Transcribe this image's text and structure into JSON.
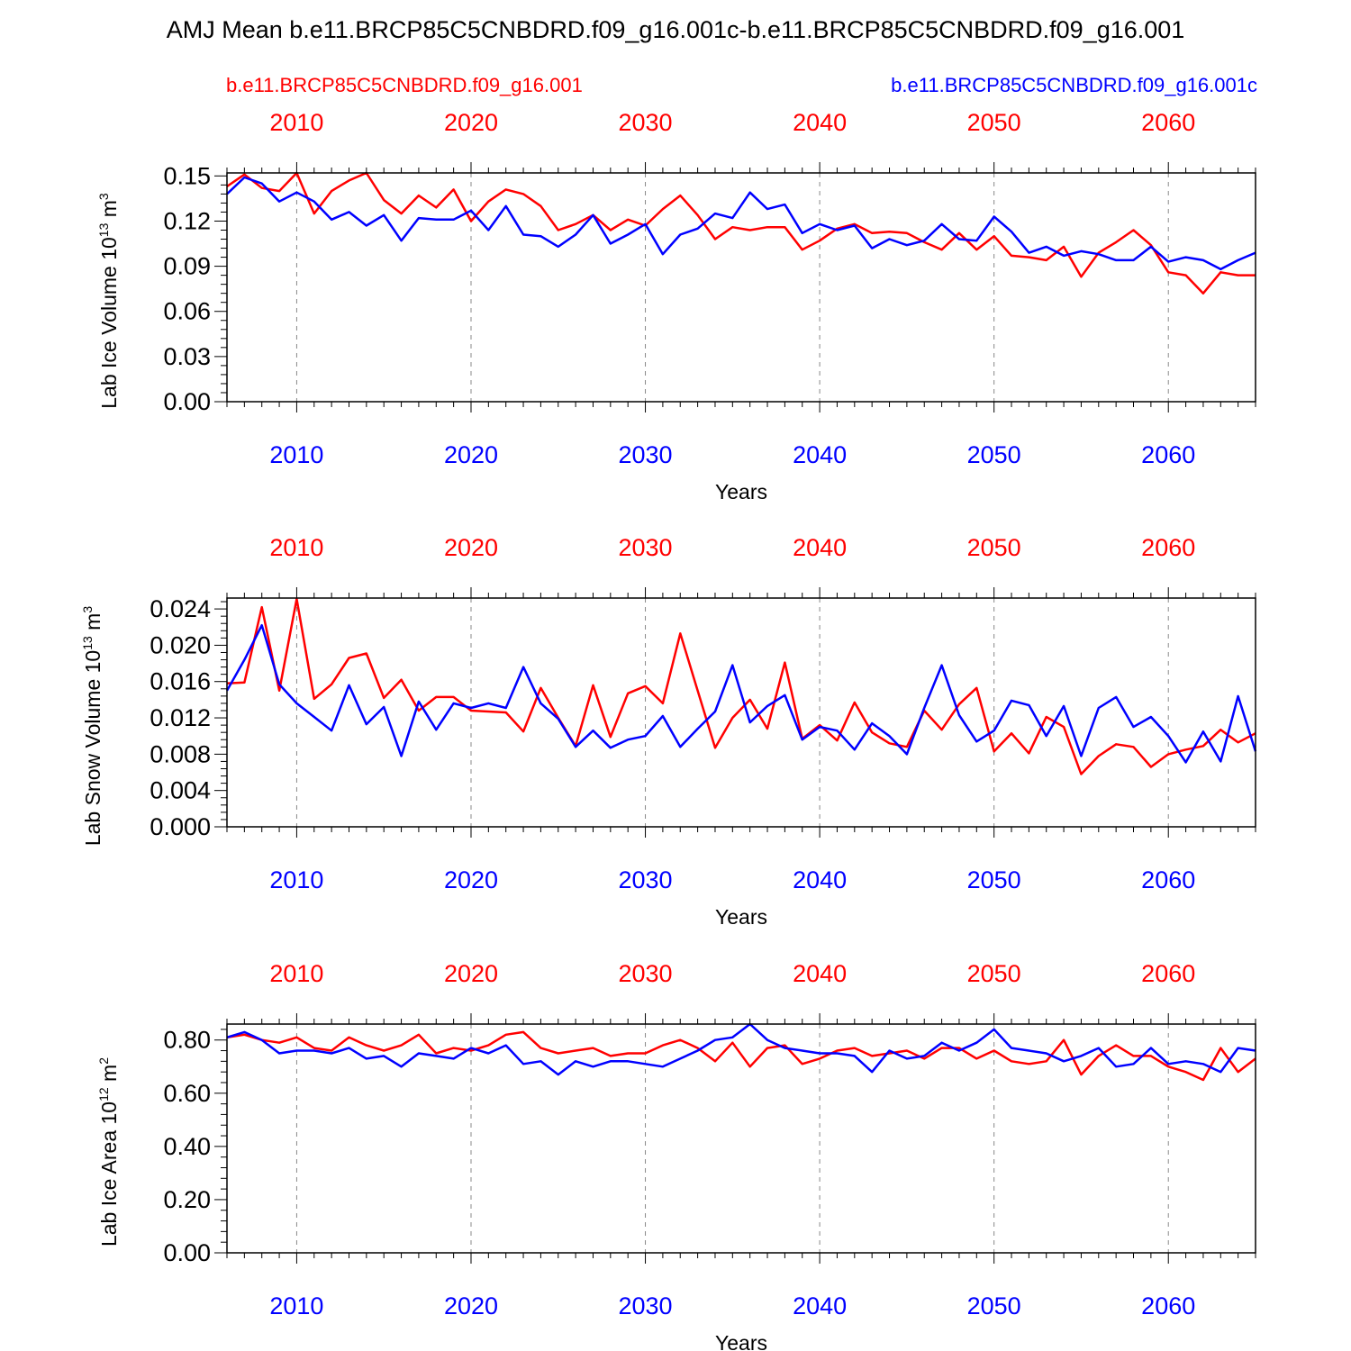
{
  "title": "AMJ Mean b.e11.BRCP85C5CNBDRD.f09_g16.001c-b.e11.BRCP85C5CNBDRD.f09_g16.001",
  "legend": {
    "red": "b.e11.BRCP85C5CNBDRD.f09_g16.001",
    "blue": "b.e11.BRCP85C5CNBDRD.f09_g16.001c"
  },
  "colors": {
    "red": "#ff0000",
    "blue": "#0000ff",
    "axis": "#000000",
    "grid": "#888888"
  },
  "chart_data": [
    {
      "type": "line",
      "ylabel": "Lab Ice Volume",
      "yunit_base": "10",
      "yunit_exp": "13",
      "yunit_tail": "m",
      "yunit_tail_exp": "3",
      "xlabel": "Years",
      "xlim": [
        2006,
        2065
      ],
      "ylim": [
        0,
        0.152
      ],
      "yticks": [
        "0.00",
        "0.03",
        "0.06",
        "0.09",
        "0.12",
        "0.15"
      ],
      "xticks": [
        "2010",
        "2020",
        "2030",
        "2040",
        "2050",
        "2060"
      ],
      "grid": "vertical dashed at major x ticks",
      "x": [
        2006,
        2007,
        2008,
        2009,
        2010,
        2011,
        2012,
        2013,
        2014,
        2015,
        2016,
        2017,
        2018,
        2019,
        2020,
        2021,
        2022,
        2023,
        2024,
        2025,
        2026,
        2027,
        2028,
        2029,
        2030,
        2031,
        2032,
        2033,
        2034,
        2035,
        2036,
        2037,
        2038,
        2039,
        2040,
        2041,
        2042,
        2043,
        2044,
        2045,
        2046,
        2047,
        2048,
        2049,
        2050,
        2051,
        2052,
        2053,
        2054,
        2055,
        2056,
        2057,
        2058,
        2059,
        2060,
        2061,
        2062,
        2063,
        2064,
        2065
      ],
      "series": [
        {
          "color": "red",
          "values": [
            0.143,
            0.151,
            0.142,
            0.14,
            0.152,
            0.125,
            0.14,
            0.147,
            0.152,
            0.134,
            0.125,
            0.137,
            0.129,
            0.141,
            0.12,
            0.133,
            0.141,
            0.138,
            0.13,
            0.114,
            0.118,
            0.124,
            0.114,
            0.121,
            0.117,
            0.128,
            0.137,
            0.124,
            0.108,
            0.116,
            0.114,
            0.116,
            0.116,
            0.101,
            0.107,
            0.115,
            0.118,
            0.112,
            0.113,
            0.112,
            0.106,
            0.101,
            0.112,
            0.101,
            0.11,
            0.097,
            0.096,
            0.094,
            0.103,
            0.083,
            0.099,
            0.106,
            0.114,
            0.104,
            0.086,
            0.084,
            0.072,
            0.086,
            0.084,
            0.084
          ]
        },
        {
          "color": "blue",
          "values": [
            0.138,
            0.149,
            0.145,
            0.133,
            0.139,
            0.133,
            0.121,
            0.126,
            0.117,
            0.124,
            0.107,
            0.122,
            0.121,
            0.121,
            0.127,
            0.114,
            0.13,
            0.111,
            0.11,
            0.103,
            0.111,
            0.124,
            0.105,
            0.111,
            0.118,
            0.098,
            0.111,
            0.115,
            0.125,
            0.122,
            0.139,
            0.128,
            0.131,
            0.112,
            0.118,
            0.114,
            0.117,
            0.102,
            0.108,
            0.104,
            0.107,
            0.118,
            0.108,
            0.107,
            0.123,
            0.113,
            0.099,
            0.103,
            0.097,
            0.1,
            0.098,
            0.094,
            0.094,
            0.103,
            0.093,
            0.096,
            0.094,
            0.088,
            0.094,
            0.099
          ]
        }
      ]
    },
    {
      "type": "line",
      "ylabel": "Lab Snow Volume",
      "yunit_base": "10",
      "yunit_exp": "13",
      "yunit_tail": "m",
      "yunit_tail_exp": "3",
      "xlabel": "Years",
      "xlim": [
        2006,
        2065
      ],
      "ylim": [
        0,
        0.0252
      ],
      "yticks": [
        "0.000",
        "0.004",
        "0.008",
        "0.012",
        "0.016",
        "0.020",
        "0.024"
      ],
      "xticks": [
        "2010",
        "2020",
        "2030",
        "2040",
        "2050",
        "2060"
      ],
      "grid": "vertical dashed at major x ticks",
      "x": [
        2006,
        2007,
        2008,
        2009,
        2010,
        2011,
        2012,
        2013,
        2014,
        2015,
        2016,
        2017,
        2018,
        2019,
        2020,
        2021,
        2022,
        2023,
        2024,
        2025,
        2026,
        2027,
        2028,
        2029,
        2030,
        2031,
        2032,
        2033,
        2034,
        2035,
        2036,
        2037,
        2038,
        2039,
        2040,
        2041,
        2042,
        2043,
        2044,
        2045,
        2046,
        2047,
        2048,
        2049,
        2050,
        2051,
        2052,
        2053,
        2054,
        2055,
        2056,
        2057,
        2058,
        2059,
        2060,
        2061,
        2062,
        2063,
        2064,
        2065
      ],
      "series": [
        {
          "color": "red",
          "values": [
            0.0158,
            0.0159,
            0.0242,
            0.015,
            0.0251,
            0.0141,
            0.0157,
            0.0186,
            0.0191,
            0.0142,
            0.0162,
            0.0128,
            0.0143,
            0.0143,
            0.0128,
            0.0127,
            0.0126,
            0.0105,
            0.0153,
            0.012,
            0.0089,
            0.0156,
            0.0099,
            0.0147,
            0.0155,
            0.0136,
            0.0213,
            0.015,
            0.0087,
            0.012,
            0.014,
            0.0108,
            0.0181,
            0.0097,
            0.0112,
            0.0095,
            0.0137,
            0.0104,
            0.0092,
            0.0088,
            0.0128,
            0.0107,
            0.0135,
            0.0153,
            0.0083,
            0.0103,
            0.0081,
            0.0121,
            0.011,
            0.0058,
            0.0078,
            0.0091,
            0.0088,
            0.0066,
            0.008,
            0.0085,
            0.0089,
            0.0107,
            0.0093,
            0.0103
          ]
        },
        {
          "color": "blue",
          "values": [
            0.015,
            0.0184,
            0.0222,
            0.0157,
            0.0136,
            0.0121,
            0.0106,
            0.0156,
            0.0113,
            0.0132,
            0.0078,
            0.0138,
            0.0107,
            0.0136,
            0.0131,
            0.0136,
            0.0131,
            0.0176,
            0.0136,
            0.0119,
            0.0088,
            0.0106,
            0.0087,
            0.0096,
            0.01,
            0.0122,
            0.0088,
            0.0108,
            0.0127,
            0.0178,
            0.0115,
            0.0133,
            0.0145,
            0.0096,
            0.011,
            0.0106,
            0.0085,
            0.0114,
            0.01,
            0.008,
            0.0131,
            0.0178,
            0.0123,
            0.0094,
            0.0106,
            0.0139,
            0.0134,
            0.01,
            0.0133,
            0.0078,
            0.0131,
            0.0143,
            0.011,
            0.0121,
            0.01,
            0.0071,
            0.0105,
            0.0072,
            0.0144,
            0.0083
          ]
        }
      ]
    },
    {
      "type": "line",
      "ylabel": "Lab Ice Area",
      "yunit_base": "10",
      "yunit_exp": "12",
      "yunit_tail": "m",
      "yunit_tail_exp": "2",
      "xlabel": "Years",
      "xlim": [
        2006,
        2065
      ],
      "ylim": [
        0,
        0.86
      ],
      "yticks": [
        "0.00",
        "0.20",
        "0.40",
        "0.60",
        "0.80"
      ],
      "xticks": [
        "2010",
        "2020",
        "2030",
        "2040",
        "2050",
        "2060"
      ],
      "grid": "vertical dashed at major x ticks",
      "x": [
        2006,
        2007,
        2008,
        2009,
        2010,
        2011,
        2012,
        2013,
        2014,
        2015,
        2016,
        2017,
        2018,
        2019,
        2020,
        2021,
        2022,
        2023,
        2024,
        2025,
        2026,
        2027,
        2028,
        2029,
        2030,
        2031,
        2032,
        2033,
        2034,
        2035,
        2036,
        2037,
        2038,
        2039,
        2040,
        2041,
        2042,
        2043,
        2044,
        2045,
        2046,
        2047,
        2048,
        2049,
        2050,
        2051,
        2052,
        2053,
        2054,
        2055,
        2056,
        2057,
        2058,
        2059,
        2060,
        2061,
        2062,
        2063,
        2064,
        2065
      ],
      "series": [
        {
          "color": "red",
          "values": [
            0.81,
            0.82,
            0.8,
            0.79,
            0.81,
            0.77,
            0.76,
            0.81,
            0.78,
            0.76,
            0.78,
            0.82,
            0.75,
            0.77,
            0.76,
            0.78,
            0.82,
            0.83,
            0.77,
            0.75,
            0.76,
            0.77,
            0.74,
            0.75,
            0.75,
            0.78,
            0.8,
            0.77,
            0.72,
            0.79,
            0.7,
            0.77,
            0.78,
            0.71,
            0.73,
            0.76,
            0.77,
            0.74,
            0.75,
            0.76,
            0.73,
            0.77,
            0.77,
            0.73,
            0.76,
            0.72,
            0.71,
            0.72,
            0.8,
            0.67,
            0.74,
            0.78,
            0.74,
            0.74,
            0.7,
            0.68,
            0.65,
            0.77,
            0.68,
            0.73
          ]
        },
        {
          "color": "blue",
          "values": [
            0.81,
            0.83,
            0.8,
            0.75,
            0.76,
            0.76,
            0.75,
            0.77,
            0.73,
            0.74,
            0.7,
            0.75,
            0.74,
            0.73,
            0.77,
            0.75,
            0.78,
            0.71,
            0.72,
            0.67,
            0.72,
            0.7,
            0.72,
            0.72,
            0.71,
            0.7,
            0.73,
            0.76,
            0.8,
            0.81,
            0.86,
            0.8,
            0.77,
            0.76,
            0.75,
            0.75,
            0.74,
            0.68,
            0.76,
            0.73,
            0.74,
            0.79,
            0.76,
            0.79,
            0.84,
            0.77,
            0.76,
            0.75,
            0.72,
            0.74,
            0.77,
            0.7,
            0.71,
            0.77,
            0.71,
            0.72,
            0.71,
            0.68,
            0.77,
            0.76
          ]
        }
      ]
    }
  ]
}
